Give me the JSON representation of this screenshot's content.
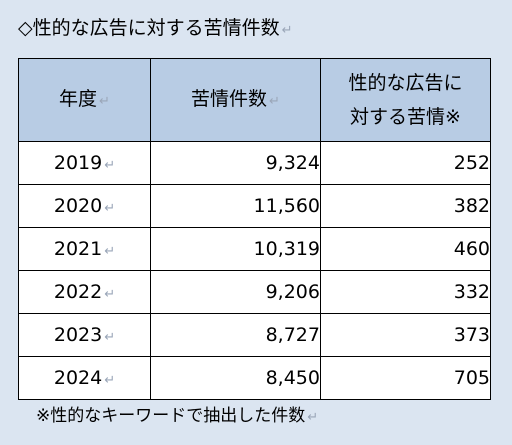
{
  "title": "◇性的な広告に対する苦情件数",
  "return_mark": "↵",
  "table": {
    "headers": {
      "year": "年度",
      "complaints": "苦情件数",
      "sexual_ad_line1": "性的な広告に",
      "sexual_ad_line2": "対する苦情※"
    },
    "rows": [
      {
        "year": "2019",
        "complaints": "9,324",
        "sexual_ad": "252"
      },
      {
        "year": "2020",
        "complaints": "11,560",
        "sexual_ad": "382"
      },
      {
        "year": "2021",
        "complaints": "10,319",
        "sexual_ad": "460"
      },
      {
        "year": "2022",
        "complaints": "9,206",
        "sexual_ad": "332"
      },
      {
        "year": "2023",
        "complaints": "8,727",
        "sexual_ad": "373"
      },
      {
        "year": "2024",
        "complaints": "8,450",
        "sexual_ad": "705"
      }
    ]
  },
  "footnote": "※性的なキーワードで抽出した件数"
}
